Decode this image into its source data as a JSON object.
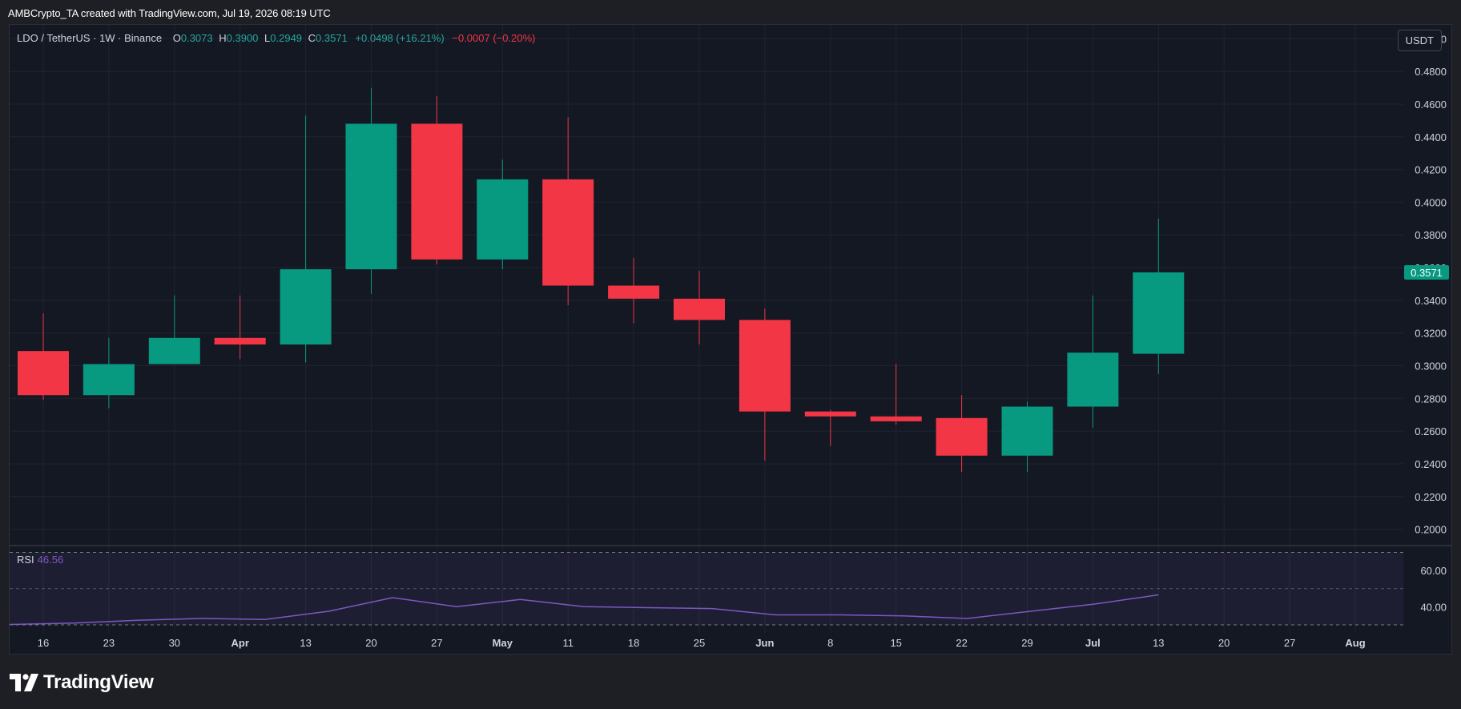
{
  "header": {
    "credit": "AMBCrypto_TA created with TradingView.com, Jul 19, 2026 08:19 UTC"
  },
  "legend": {
    "symbol": "LDO / TetherUS · 1W · Binance",
    "open_label": "O",
    "open": "0.3073",
    "high_label": "H",
    "high": "0.3900",
    "low_label": "L",
    "low": "0.2949",
    "close_label": "C",
    "close": "0.3571",
    "change": "+0.0498 (+16.21%)",
    "extra_change": "−0.0007 (−0.20%)"
  },
  "unit_button": "USDT",
  "rsi": {
    "label": "RSI",
    "value": "46.56"
  },
  "brand": {
    "name": "TradingView"
  },
  "colors": {
    "up": "#089981",
    "down": "#f23645",
    "rsi": "#7e57c2",
    "background": "#141823"
  },
  "chart_data": {
    "type": "candlestick",
    "price_axis": {
      "min": 0.19,
      "max": 0.5085,
      "ticks": [
        0.5,
        0.48,
        0.46,
        0.44,
        0.42,
        0.4,
        0.38,
        0.36,
        0.34,
        0.32,
        0.3,
        0.28,
        0.26,
        0.24,
        0.22,
        0.2
      ],
      "tick_labels": [
        "0.5000",
        "0.4800",
        "0.4600",
        "0.4400",
        "0.4200",
        "0.4000",
        "0.3800",
        "0.3600",
        "0.3400",
        "0.3200",
        "0.3000",
        "0.2800",
        "0.2600",
        "0.2400",
        "0.2200",
        "0.2000"
      ],
      "last_price_label": "0.3571"
    },
    "x_labels": [
      "16",
      "23",
      "30",
      "Apr",
      "13",
      "20",
      "27",
      "May",
      "11",
      "18",
      "25",
      "Jun",
      "8",
      "15",
      "22",
      "29",
      "Jul",
      "13",
      "20",
      "27",
      "Aug"
    ],
    "month_labels": [
      "Apr",
      "May",
      "Jun",
      "Jul",
      "Aug"
    ],
    "candles": [
      {
        "o": 0.309,
        "h": 0.332,
        "l": 0.279,
        "c": 0.282
      },
      {
        "o": 0.282,
        "h": 0.317,
        "l": 0.274,
        "c": 0.301
      },
      {
        "o": 0.301,
        "h": 0.343,
        "l": 0.301,
        "c": 0.317
      },
      {
        "o": 0.317,
        "h": 0.343,
        "l": 0.304,
        "c": 0.313
      },
      {
        "o": 0.313,
        "h": 0.453,
        "l": 0.302,
        "c": 0.359
      },
      {
        "o": 0.359,
        "h": 0.47,
        "l": 0.344,
        "c": 0.448
      },
      {
        "o": 0.448,
        "h": 0.465,
        "l": 0.362,
        "c": 0.365
      },
      {
        "o": 0.365,
        "h": 0.426,
        "l": 0.359,
        "c": 0.414
      },
      {
        "o": 0.414,
        "h": 0.452,
        "l": 0.337,
        "c": 0.349
      },
      {
        "o": 0.349,
        "h": 0.366,
        "l": 0.326,
        "c": 0.341
      },
      {
        "o": 0.341,
        "h": 0.358,
        "l": 0.313,
        "c": 0.328
      },
      {
        "o": 0.328,
        "h": 0.335,
        "l": 0.242,
        "c": 0.272
      },
      {
        "o": 0.272,
        "h": 0.273,
        "l": 0.251,
        "c": 0.269
      },
      {
        "o": 0.269,
        "h": 0.301,
        "l": 0.264,
        "c": 0.266
      },
      {
        "o": 0.268,
        "h": 0.282,
        "l": 0.235,
        "c": 0.245
      },
      {
        "o": 0.245,
        "h": 0.278,
        "l": 0.235,
        "c": 0.275
      },
      {
        "o": 0.275,
        "h": 0.343,
        "l": 0.262,
        "c": 0.308
      },
      {
        "o": 0.3073,
        "h": 0.39,
        "l": 0.2949,
        "c": 0.3571
      }
    ],
    "rsi": {
      "axis_min": 26,
      "axis_max": 72,
      "ticks": [
        60,
        40
      ],
      "tick_labels": [
        "60.00",
        "40.00"
      ],
      "band_upper": 70,
      "band_lower": 30,
      "mid": 50,
      "values": [
        30.2,
        31.0,
        32.5,
        33.5,
        33.0,
        37.5,
        45.0,
        40.0,
        44.0,
        40.0,
        39.5,
        39.0,
        35.5,
        35.5,
        35.0,
        33.5,
        37.5,
        41.5,
        46.56
      ]
    }
  }
}
